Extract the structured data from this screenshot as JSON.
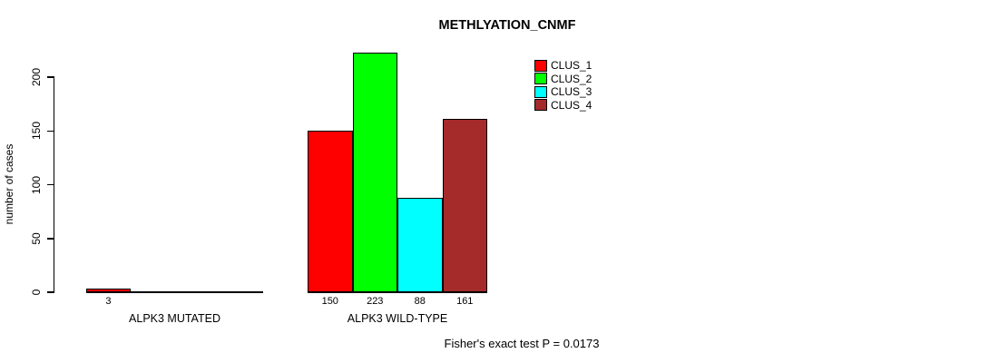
{
  "title": "METHLYATION_CNMF",
  "y_axis": {
    "label": "number of cases",
    "ticks": [
      0,
      50,
      100,
      150,
      200
    ]
  },
  "x_axis": {
    "groups": [
      "ALPK3 MUTATED",
      "ALPK3 WILD-TYPE"
    ]
  },
  "legend": {
    "position": "top-right",
    "items": [
      {
        "label": "CLUS_1",
        "color": "#ff0000"
      },
      {
        "label": "CLUS_2",
        "color": "#00ff00"
      },
      {
        "label": "CLUS_3",
        "color": "#00ffff"
      },
      {
        "label": "CLUS_4",
        "color": "#a52a2a"
      }
    ]
  },
  "annotation": "Fisher's exact test P = 0.0173",
  "chart_data": {
    "type": "bar",
    "title": "METHLYATION_CNMF",
    "xlabel": "",
    "ylabel": "number of cases",
    "ylim": [
      0,
      200
    ],
    "yticks": [
      0,
      50,
      100,
      150,
      200
    ],
    "grid": false,
    "legend_position": "top-right",
    "series": [
      "CLUS_1",
      "CLUS_2",
      "CLUS_3",
      "CLUS_4"
    ],
    "colors": {
      "CLUS_1": "#ff0000",
      "CLUS_2": "#00ff00",
      "CLUS_3": "#00ffff",
      "CLUS_4": "#a52a2a"
    },
    "groups": [
      {
        "category": "ALPK3 MUTATED",
        "values": [
          3,
          0,
          0,
          0
        ],
        "bar_labels": [
          "3",
          "",
          "",
          ""
        ]
      },
      {
        "category": "ALPK3 WILD-TYPE",
        "values": [
          150,
          223,
          88,
          161
        ],
        "bar_labels": [
          "150",
          "223",
          "88",
          "161"
        ]
      }
    ],
    "annotation": "Fisher's exact test P = 0.0173"
  }
}
